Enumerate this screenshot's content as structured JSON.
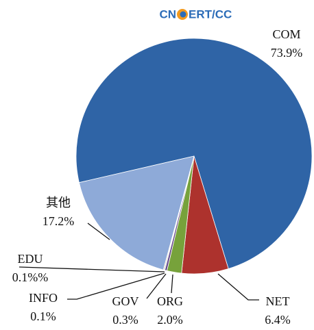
{
  "chart_data": {
    "type": "pie",
    "logo": [
      "CN",
      "ERT/CC"
    ],
    "categories": [
      "COM",
      "NET",
      "ORG",
      "GOV",
      "INFO",
      "EDU",
      "其他"
    ],
    "values": [
      73.9,
      6.4,
      2.0,
      0.3,
      0.1,
      0.1,
      17.2
    ],
    "value_labels": [
      "73.9%",
      "6.4%",
      "2.0%",
      "0.3%",
      "0.1%",
      "0.1%%",
      "17.2%"
    ],
    "colors": [
      "#2f64a6",
      "#ad322d",
      "#77a23b",
      "#6a4c8c",
      "#3b9fc2",
      "#e3741f",
      "#8eaad8"
    ]
  }
}
